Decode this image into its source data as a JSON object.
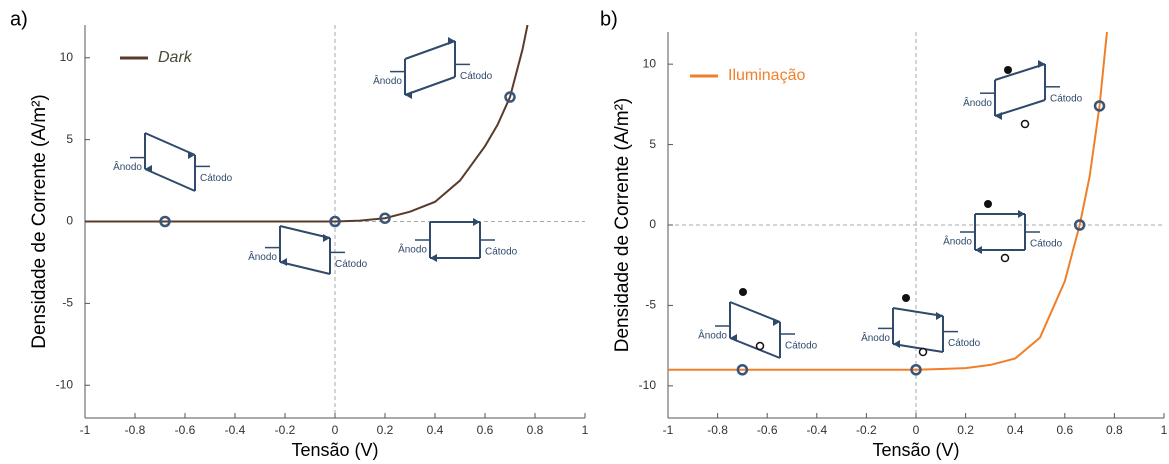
{
  "chart_data": [
    {
      "type": "line",
      "label": "a)",
      "xlabel": "Tensão (V)",
      "ylabel": "Densidade de Corrente (A/m²)",
      "series": [
        {
          "name": "Dark",
          "color": "#5a3b2b",
          "x": [
            -1,
            -0.8,
            -0.6,
            -0.4,
            -0.2,
            0,
            0.1,
            0.2,
            0.3,
            0.4,
            0.5,
            0.6,
            0.65,
            0.7,
            0.75,
            0.77
          ],
          "values": [
            0,
            0,
            0,
            0,
            0,
            0,
            0.05,
            0.2,
            0.6,
            1.2,
            2.5,
            4.6,
            5.9,
            7.6,
            10.5,
            12
          ]
        }
      ],
      "points": {
        "color": "#3a5578",
        "x": [
          -0.68,
          0,
          0.2,
          0.7
        ],
        "values": [
          0,
          0,
          0.2,
          7.6
        ]
      },
      "insets": [
        [
          "Ânodo",
          "Cátodo"
        ],
        [
          "Ânodo",
          "Cátodo"
        ],
        [
          "Ânodo",
          "Cátodo"
        ],
        [
          "Ânodo",
          "Cátodo"
        ]
      ],
      "xlim": [
        -1,
        1
      ],
      "ylim": [
        -12,
        12
      ],
      "xticks": [
        -1,
        -0.8,
        -0.6,
        -0.4,
        -0.2,
        0,
        0.2,
        0.4,
        0.6,
        0.8,
        1
      ],
      "yticks": [
        -10,
        -5,
        0,
        5,
        10
      ]
    },
    {
      "type": "line",
      "label": "b)",
      "xlabel": "Tensão (V)",
      "ylabel": "Densidade de Corrente (A/m²)",
      "series": [
        {
          "name": "Iluminação",
          "color": "#f07f2a",
          "x": [
            -1,
            -0.8,
            -0.6,
            -0.4,
            -0.2,
            0,
            0.1,
            0.2,
            0.3,
            0.4,
            0.5,
            0.6,
            0.66,
            0.7,
            0.74,
            0.77
          ],
          "values": [
            -9,
            -9,
            -9,
            -9,
            -9,
            -9,
            -8.95,
            -8.9,
            -8.7,
            -8.3,
            -7,
            -3.5,
            0,
            3,
            7.4,
            12
          ]
        }
      ],
      "points": {
        "color": "#3a5578",
        "x": [
          -0.7,
          0,
          0.66,
          0.74
        ],
        "values": [
          -9,
          -9,
          0,
          7.4
        ]
      },
      "insets": [
        [
          "Ânodo",
          "Cátodo"
        ],
        [
          "Ânodo",
          "Cátodo"
        ],
        [
          "Ânodo",
          "Cátodo"
        ],
        [
          "Ânodo",
          "Cátodo"
        ]
      ],
      "xlim": [
        -1,
        1
      ],
      "ylim": [
        -12,
        12
      ],
      "xticks": [
        -1,
        -0.8,
        -0.6,
        -0.4,
        -0.2,
        0,
        0.2,
        0.4,
        0.6,
        0.8,
        1
      ],
      "yticks": [
        -10,
        -5,
        0,
        5,
        10
      ]
    }
  ]
}
